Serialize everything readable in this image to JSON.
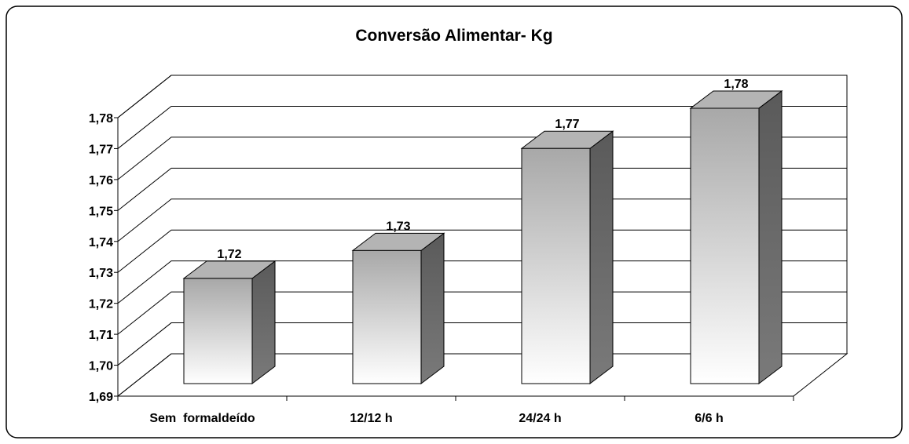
{
  "chart_data": {
    "type": "bar3d",
    "title": "Conversão Alimentar- Kg",
    "categories": [
      "Sem  formaldeído",
      "12/12 h",
      "24/24 h",
      "6/6 h"
    ],
    "values": [
      1.724,
      1.733,
      1.766,
      1.779
    ],
    "value_labels": [
      "1,72",
      "1,73",
      "1,77",
      "1,78"
    ],
    "ylim": [
      1.69,
      1.78
    ],
    "yticks": [
      {
        "value": 1.69,
        "label": "1,69"
      },
      {
        "value": 1.7,
        "label": "1,70"
      },
      {
        "value": 1.71,
        "label": "1,71"
      },
      {
        "value": 1.72,
        "label": "1,72"
      },
      {
        "value": 1.73,
        "label": "1,73"
      },
      {
        "value": 1.74,
        "label": "1,74"
      },
      {
        "value": 1.75,
        "label": "1,75"
      },
      {
        "value": 1.76,
        "label": "1,76"
      },
      {
        "value": 1.77,
        "label": "1,77"
      },
      {
        "value": 1.78,
        "label": "1,78"
      }
    ],
    "grid": true
  }
}
